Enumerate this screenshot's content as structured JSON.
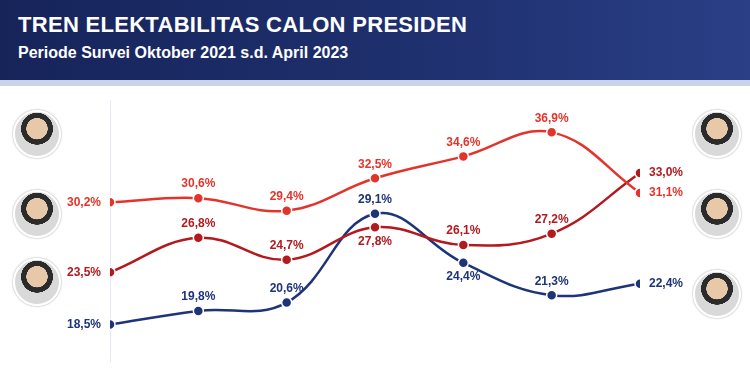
{
  "chart_data": {
    "type": "line",
    "title": "TREN ELEKTABILITAS CALON PRESIDEN",
    "subtitle": "Periode Survei Oktober 2021 s.d. April 2023",
    "categories": [
      null,
      null,
      null,
      null,
      null,
      null,
      null
    ],
    "series": [
      {
        "color": "#e3342b",
        "values": [
          30.2,
          30.6,
          29.4,
          32.5,
          34.6,
          36.9,
          31.1
        ],
        "value_labels": [
          "30,2%",
          "30,6%",
          "29,4%",
          "32,5%",
          "34,6%",
          "36,9%",
          "31,1%"
        ]
      },
      {
        "color": "#b3191d",
        "values": [
          23.5,
          26.8,
          24.7,
          27.8,
          26.1,
          27.2,
          33.0
        ],
        "value_labels": [
          "23,5%",
          "26,8%",
          "24,7%",
          "27,8%",
          "26,1%",
          "27,2%",
          "33,0%"
        ]
      },
      {
        "color": "#1d3478",
        "values": [
          18.5,
          19.8,
          20.6,
          29.1,
          24.4,
          21.3,
          22.4
        ],
        "value_labels": [
          "18,5%",
          "19,8%",
          "20,6%",
          "29,1%",
          "24,4%",
          "21,3%",
          "22,4%"
        ]
      }
    ],
    "ylim": [
      15,
      40
    ],
    "yticks": [],
    "grid": false,
    "data_labels": true,
    "tick_labels": false,
    "marker": "circle"
  }
}
